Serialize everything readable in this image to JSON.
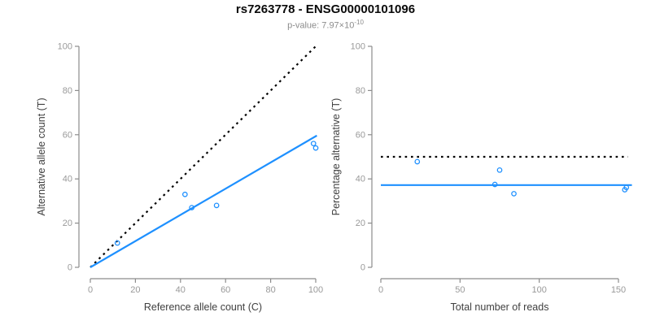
{
  "header": {
    "title": "rs7263778 - ENSG00000101096",
    "subtitle_prefix": "p-value: 7.97×10",
    "subtitle_exponent": "-10"
  },
  "colors": {
    "accent_blue": "#1E90FF",
    "line_black": "#000000",
    "axis_gray": "#8c8c8c",
    "tick_label_gray": "#999999",
    "axis_title_gray": "#404040"
  },
  "chart_data": [
    {
      "type": "scatter",
      "name": "allele-counts-plot",
      "xlabel": "Reference allele count (C)",
      "ylabel": "Alternative allele count (T)",
      "xlim": [
        0,
        100
      ],
      "ylim": [
        0,
        100
      ],
      "xticks": [
        0,
        20,
        40,
        60,
        80,
        100
      ],
      "yticks": [
        0,
        20,
        40,
        60,
        80,
        100
      ],
      "grid": false,
      "points": [
        [
          12,
          11
        ],
        [
          42,
          33
        ],
        [
          45,
          27
        ],
        [
          56,
          28
        ],
        [
          99,
          56
        ],
        [
          100,
          54
        ]
      ],
      "lines": [
        {
          "name": "identity-line",
          "style": "dotted",
          "color": "#000000",
          "from": [
            0,
            0
          ],
          "to": [
            100,
            100
          ]
        },
        {
          "name": "fit-line",
          "style": "solid",
          "color": "#1E90FF",
          "from": [
            0,
            0
          ],
          "to": [
            100.5,
            59.6
          ]
        }
      ]
    },
    {
      "type": "scatter",
      "name": "percentage-alternative-plot",
      "xlabel": "Total number of reads",
      "ylabel": "Percentage alternative (T)",
      "xlim": [
        0,
        150
      ],
      "ylim": [
        0,
        100
      ],
      "xticks": [
        0,
        50,
        100,
        150
      ],
      "yticks": [
        0,
        20,
        40,
        60,
        80,
        100
      ],
      "grid": false,
      "points": [
        [
          23,
          47.8
        ],
        [
          72,
          37.5
        ],
        [
          75,
          44
        ],
        [
          84,
          33.3
        ],
        [
          154,
          35.1
        ],
        [
          155,
          36.1
        ]
      ],
      "lines": [
        {
          "name": "expected-50pct-line",
          "style": "dotted",
          "color": "#000000",
          "from": [
            0,
            50
          ],
          "to": [
            156,
            50
          ]
        },
        {
          "name": "fit-line",
          "style": "solid",
          "color": "#1E90FF",
          "from": [
            0,
            37.2
          ],
          "to": [
            158.5,
            37.2
          ]
        }
      ]
    }
  ]
}
